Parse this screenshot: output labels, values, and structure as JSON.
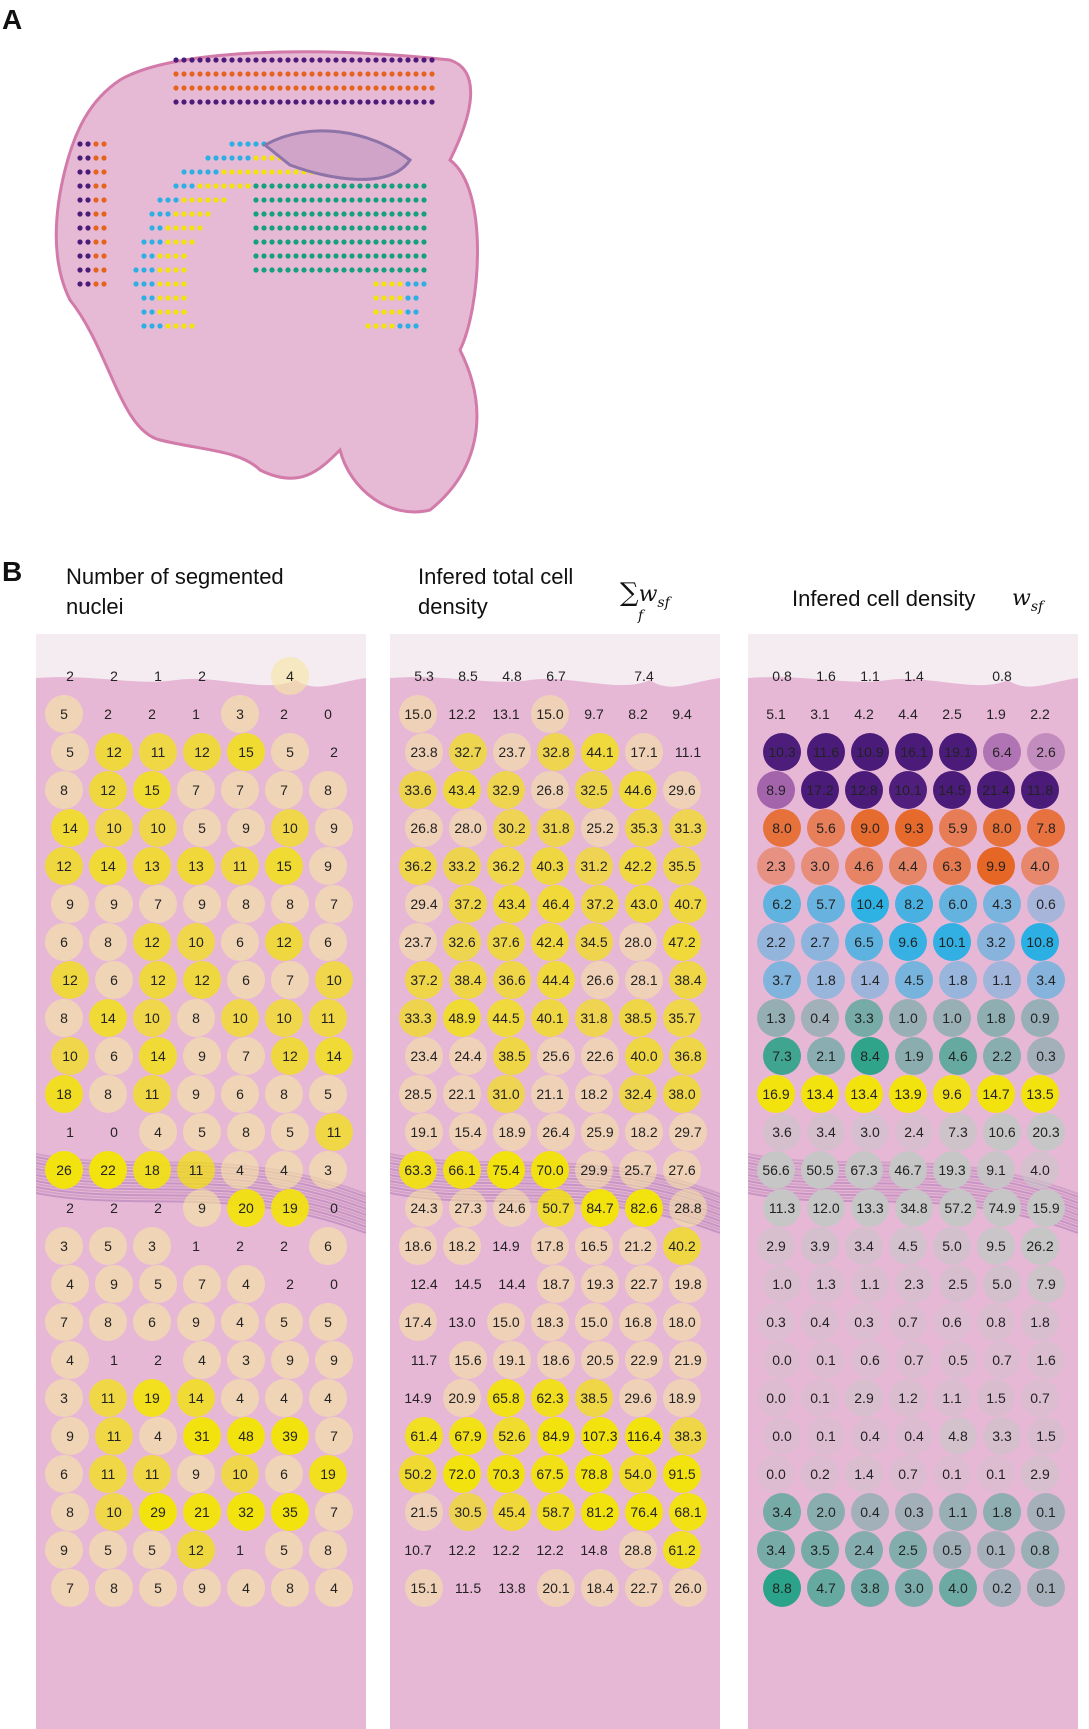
{
  "figure": {
    "panel_a_label": "A",
    "panel_b_label": "B",
    "panels": [
      {
        "title_lines": [
          "Number of segmented",
          "nuclei"
        ]
      },
      {
        "title_lines": [
          "Infered total cell",
          "density"
        ]
      },
      {
        "title_lines": [
          "Infered cell density"
        ]
      }
    ],
    "formula_sum": {
      "sigma": "∑",
      "sub": "f",
      "w": "w",
      "w_sub": "sf"
    },
    "formula_w": {
      "w": "w",
      "w_sub": "sf"
    }
  },
  "colors": {
    "tissue": "#e7b8d6",
    "yellow": "#f2e20e",
    "purple": "#4b1b7a",
    "orange": "#e6631d",
    "blue": "#2cb0e3",
    "green": "#12a07f",
    "grey": "#c6c6c6"
  },
  "chart_data": [
    {
      "type": "table",
      "title": "Number of segmented nuclei",
      "rows": [
        [
          "2",
          "2",
          "1",
          "2",
          "",
          "4",
          ""
        ],
        [
          "5",
          "2",
          "2",
          "1",
          "3",
          "2",
          "0"
        ],
        [
          "5",
          "12",
          "11",
          "12",
          "15",
          "5",
          "2"
        ],
        [
          "8",
          "12",
          "15",
          "7",
          "7",
          "7",
          "8"
        ],
        [
          "14",
          "10",
          "10",
          "5",
          "9",
          "10",
          "9"
        ],
        [
          "12",
          "14",
          "13",
          "13",
          "11",
          "15",
          "9"
        ],
        [
          "9",
          "9",
          "7",
          "9",
          "8",
          "8",
          "7"
        ],
        [
          "6",
          "8",
          "12",
          "10",
          "6",
          "12",
          "6"
        ],
        [
          "12",
          "6",
          "12",
          "12",
          "6",
          "7",
          "10"
        ],
        [
          "8",
          "14",
          "10",
          "8",
          "10",
          "10",
          "11"
        ],
        [
          "10",
          "6",
          "14",
          "9",
          "7",
          "12",
          "14"
        ],
        [
          "18",
          "8",
          "11",
          "9",
          "6",
          "8",
          "5"
        ],
        [
          "1",
          "0",
          "4",
          "5",
          "8",
          "5",
          "11"
        ],
        [
          "26",
          "22",
          "18",
          "11",
          "4",
          "4",
          "3"
        ],
        [
          "2",
          "2",
          "2",
          "9",
          "20",
          "19",
          "0"
        ],
        [
          "3",
          "5",
          "3",
          "1",
          "2",
          "2",
          "6"
        ],
        [
          "4",
          "9",
          "5",
          "7",
          "4",
          "2",
          "0"
        ],
        [
          "7",
          "8",
          "6",
          "9",
          "4",
          "5",
          "5"
        ],
        [
          "4",
          "1",
          "2",
          "4",
          "3",
          "9",
          "9"
        ],
        [
          "3",
          "11",
          "19",
          "14",
          "4",
          "4",
          "4"
        ],
        [
          "9",
          "11",
          "4",
          "31",
          "48",
          "39",
          "7"
        ],
        [
          "6",
          "11",
          "11",
          "9",
          "10",
          "6",
          "19"
        ],
        [
          "8",
          "10",
          "29",
          "21",
          "32",
          "35",
          "7"
        ],
        [
          "9",
          "5",
          "5",
          "12",
          "1",
          "5",
          "8"
        ],
        [
          "7",
          "8",
          "5",
          "9",
          "4",
          "8",
          "4"
        ]
      ]
    },
    {
      "type": "table",
      "title": "Infered total cell density",
      "rows": [
        [
          "5.3",
          "8.5",
          "4.8",
          "6.7",
          "",
          "7.4",
          ""
        ],
        [
          "15.0",
          "12.2",
          "13.1",
          "15.0",
          "9.7",
          "8.2",
          "9.4"
        ],
        [
          "23.8",
          "32.7",
          "23.7",
          "32.8",
          "44.1",
          "17.1",
          "11.1"
        ],
        [
          "33.6",
          "43.4",
          "32.9",
          "26.8",
          "32.5",
          "44.6",
          "29.6"
        ],
        [
          "26.8",
          "28.0",
          "30.2",
          "31.8",
          "25.2",
          "35.3",
          "31.3"
        ],
        [
          "36.2",
          "33.2",
          "36.2",
          "40.3",
          "31.2",
          "42.2",
          "35.5"
        ],
        [
          "29.4",
          "37.2",
          "43.4",
          "46.4",
          "37.2",
          "43.0",
          "40.7"
        ],
        [
          "23.7",
          "32.6",
          "37.6",
          "42.4",
          "34.5",
          "28.0",
          "47.2"
        ],
        [
          "37.2",
          "38.4",
          "36.6",
          "44.4",
          "26.6",
          "28.1",
          "38.4"
        ],
        [
          "33.3",
          "48.9",
          "44.5",
          "40.1",
          "31.8",
          "38.5",
          "35.7"
        ],
        [
          "23.4",
          "24.4",
          "38.5",
          "25.6",
          "22.6",
          "40.0",
          "36.8"
        ],
        [
          "28.5",
          "22.1",
          "31.0",
          "21.1",
          "18.2",
          "32.4",
          "38.0"
        ],
        [
          "19.1",
          "15.4",
          "18.9",
          "26.4",
          "25.9",
          "18.2",
          "29.7"
        ],
        [
          "63.3",
          "66.1",
          "75.4",
          "70.0",
          "29.9",
          "25.7",
          "27.6"
        ],
        [
          "24.3",
          "27.3",
          "24.6",
          "50.7",
          "84.7",
          "82.6",
          "28.8"
        ],
        [
          "18.6",
          "18.2",
          "14.9",
          "17.8",
          "16.5",
          "21.2",
          "40.2"
        ],
        [
          "12.4",
          "14.5",
          "14.4",
          "18.7",
          "19.3",
          "22.7",
          "19.8"
        ],
        [
          "17.4",
          "13.0",
          "15.0",
          "18.3",
          "15.0",
          "16.8",
          "18.0"
        ],
        [
          "11.7",
          "15.6",
          "19.1",
          "18.6",
          "20.5",
          "22.9",
          "21.9"
        ],
        [
          "14.9",
          "20.9",
          "65.8",
          "62.3",
          "38.5",
          "29.6",
          "18.9"
        ],
        [
          "61.4",
          "67.9",
          "52.6",
          "84.9",
          "107.3",
          "116.4",
          "38.3"
        ],
        [
          "50.2",
          "72.0",
          "70.3",
          "67.5",
          "78.8",
          "54.0",
          "91.5"
        ],
        [
          "21.5",
          "30.5",
          "45.4",
          "58.7",
          "81.2",
          "76.4",
          "68.1"
        ],
        [
          "10.7",
          "12.2",
          "12.2",
          "12.2",
          "14.8",
          "28.8",
          "61.2"
        ],
        [
          "15.1",
          "11.5",
          "13.8",
          "20.1",
          "18.4",
          "22.7",
          "26.0"
        ]
      ]
    },
    {
      "type": "table",
      "title": "Infered cell density",
      "rows": [
        [
          "0.8",
          "1.6",
          "1.1",
          "1.4",
          "",
          "0.8",
          ""
        ],
        [
          "5.1",
          "3.1",
          "4.2",
          "4.4",
          "2.5",
          "1.9",
          "2.2"
        ],
        [
          "10.3",
          "11.6",
          "10.9",
          "16.1",
          "19.1",
          "6.4",
          "2.6"
        ],
        [
          "8.9",
          "17.2",
          "12.8",
          "10.1",
          "14.5",
          "21.4",
          "11.8"
        ],
        [
          "8.0",
          "5.6",
          "9.0",
          "9.3",
          "5.9",
          "8.0",
          "7.8"
        ],
        [
          "2.3",
          "3.0",
          "4.6",
          "4.4",
          "6.3",
          "9.9",
          "4.0"
        ],
        [
          "6.2",
          "5.7",
          "10.4",
          "8.2",
          "6.0",
          "4.3",
          "0.6"
        ],
        [
          "2.2",
          "2.7",
          "6.5",
          "9.6",
          "10.1",
          "3.2",
          "10.8"
        ],
        [
          "3.7",
          "1.8",
          "1.4",
          "4.5",
          "1.8",
          "1.1",
          "3.4"
        ],
        [
          "1.3",
          "0.4",
          "3.3",
          "1.0",
          "1.0",
          "1.8",
          "0.9"
        ],
        [
          "7.3",
          "2.1",
          "8.4",
          "1.9",
          "4.6",
          "2.2",
          "0.3"
        ],
        [
          "16.9",
          "13.4",
          "13.4",
          "13.9",
          "9.6",
          "14.7",
          "13.5"
        ],
        [
          "3.6",
          "3.4",
          "3.0",
          "2.4",
          "7.3",
          "10.6",
          "20.3"
        ],
        [
          "56.6",
          "50.5",
          "67.3",
          "46.7",
          "19.3",
          "9.1",
          "4.0"
        ],
        [
          "11.3",
          "12.0",
          "13.3",
          "34.8",
          "57.2",
          "74.9",
          "15.9"
        ],
        [
          "2.9",
          "3.9",
          "3.4",
          "4.5",
          "5.0",
          "9.5",
          "26.2"
        ],
        [
          "1.0",
          "1.3",
          "1.1",
          "2.3",
          "2.5",
          "5.0",
          "7.9"
        ],
        [
          "0.3",
          "0.4",
          "0.3",
          "0.7",
          "0.6",
          "0.8",
          "1.8"
        ],
        [
          "0.0",
          "0.1",
          "0.6",
          "0.7",
          "0.5",
          "0.7",
          "1.6"
        ],
        [
          "0.0",
          "0.1",
          "2.9",
          "1.2",
          "1.1",
          "1.5",
          "0.7"
        ],
        [
          "0.0",
          "0.1",
          "0.4",
          "0.4",
          "4.8",
          "3.3",
          "1.5"
        ],
        [
          "0.0",
          "0.2",
          "1.4",
          "0.7",
          "0.1",
          "0.1",
          "2.9"
        ],
        [
          "3.4",
          "2.0",
          "0.4",
          "0.3",
          "1.1",
          "1.8",
          "0.1"
        ],
        [
          "3.4",
          "3.5",
          "2.4",
          "2.5",
          "0.5",
          "0.1",
          "0.8"
        ],
        [
          "8.8",
          "4.7",
          "3.8",
          "3.0",
          "4.0",
          "0.2",
          "0.1"
        ]
      ]
    }
  ]
}
